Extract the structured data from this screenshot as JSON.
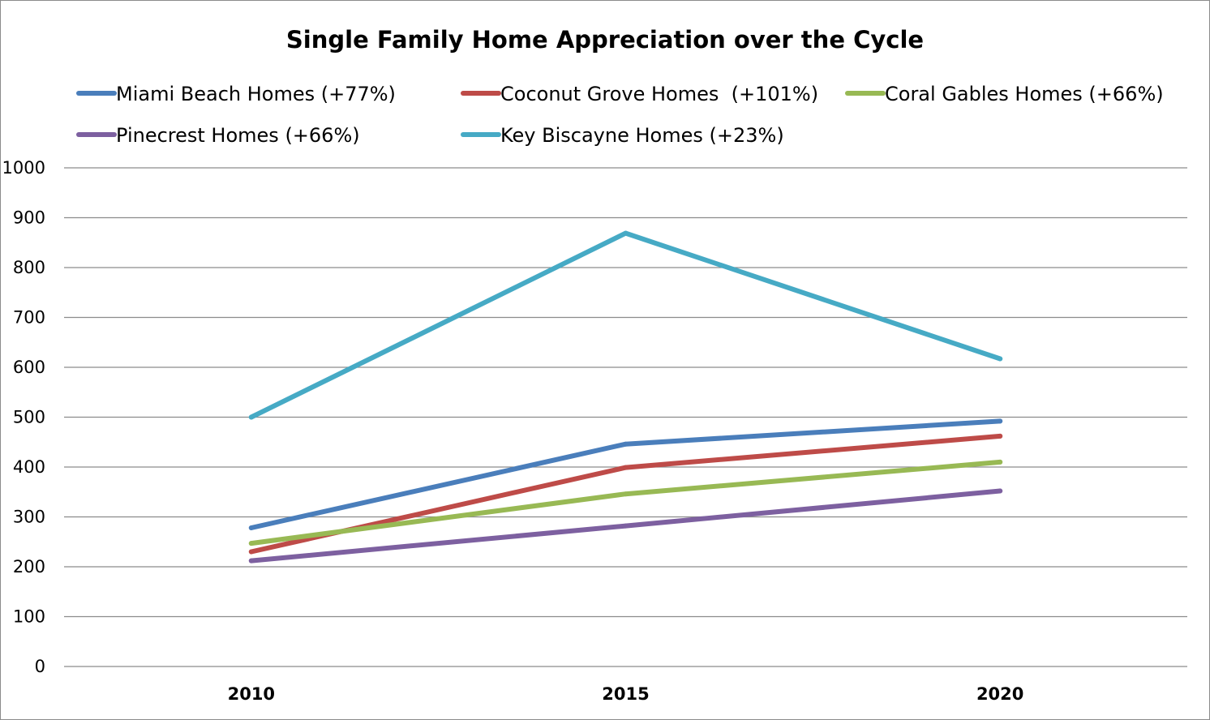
{
  "chart_data": {
    "type": "line",
    "title": "Single Family Home Appreciation over the Cycle",
    "xlabel": "",
    "ylabel": "",
    "categories": [
      "2010",
      "2015",
      "2020"
    ],
    "ylim": [
      0,
      1000
    ],
    "yticks": [
      "0",
      "100",
      "200",
      "300",
      "400",
      "500",
      "600",
      "700",
      "800",
      "900",
      "1000"
    ],
    "grid": true,
    "legend_position": "top",
    "series": [
      {
        "name": "Miami Beach Homes (+77%)",
        "color": "#4a7ebb",
        "values": [
          278,
          446,
          492
        ]
      },
      {
        "name": "Coconut Grove Homes  (+101%)",
        "color": "#be4b48",
        "values": [
          230,
          399,
          462
        ]
      },
      {
        "name": "Coral Gables Homes (+66%)",
        "color": "#98b954",
        "values": [
          247,
          346,
          410
        ]
      },
      {
        "name": "Pinecrest Homes (+66%)",
        "color": "#7d60a0",
        "values": [
          212,
          282,
          352
        ]
      },
      {
        "name": "Key Biscayne Homes (+23%)",
        "color": "#46aac5",
        "values": [
          500,
          869,
          617
        ]
      }
    ]
  }
}
